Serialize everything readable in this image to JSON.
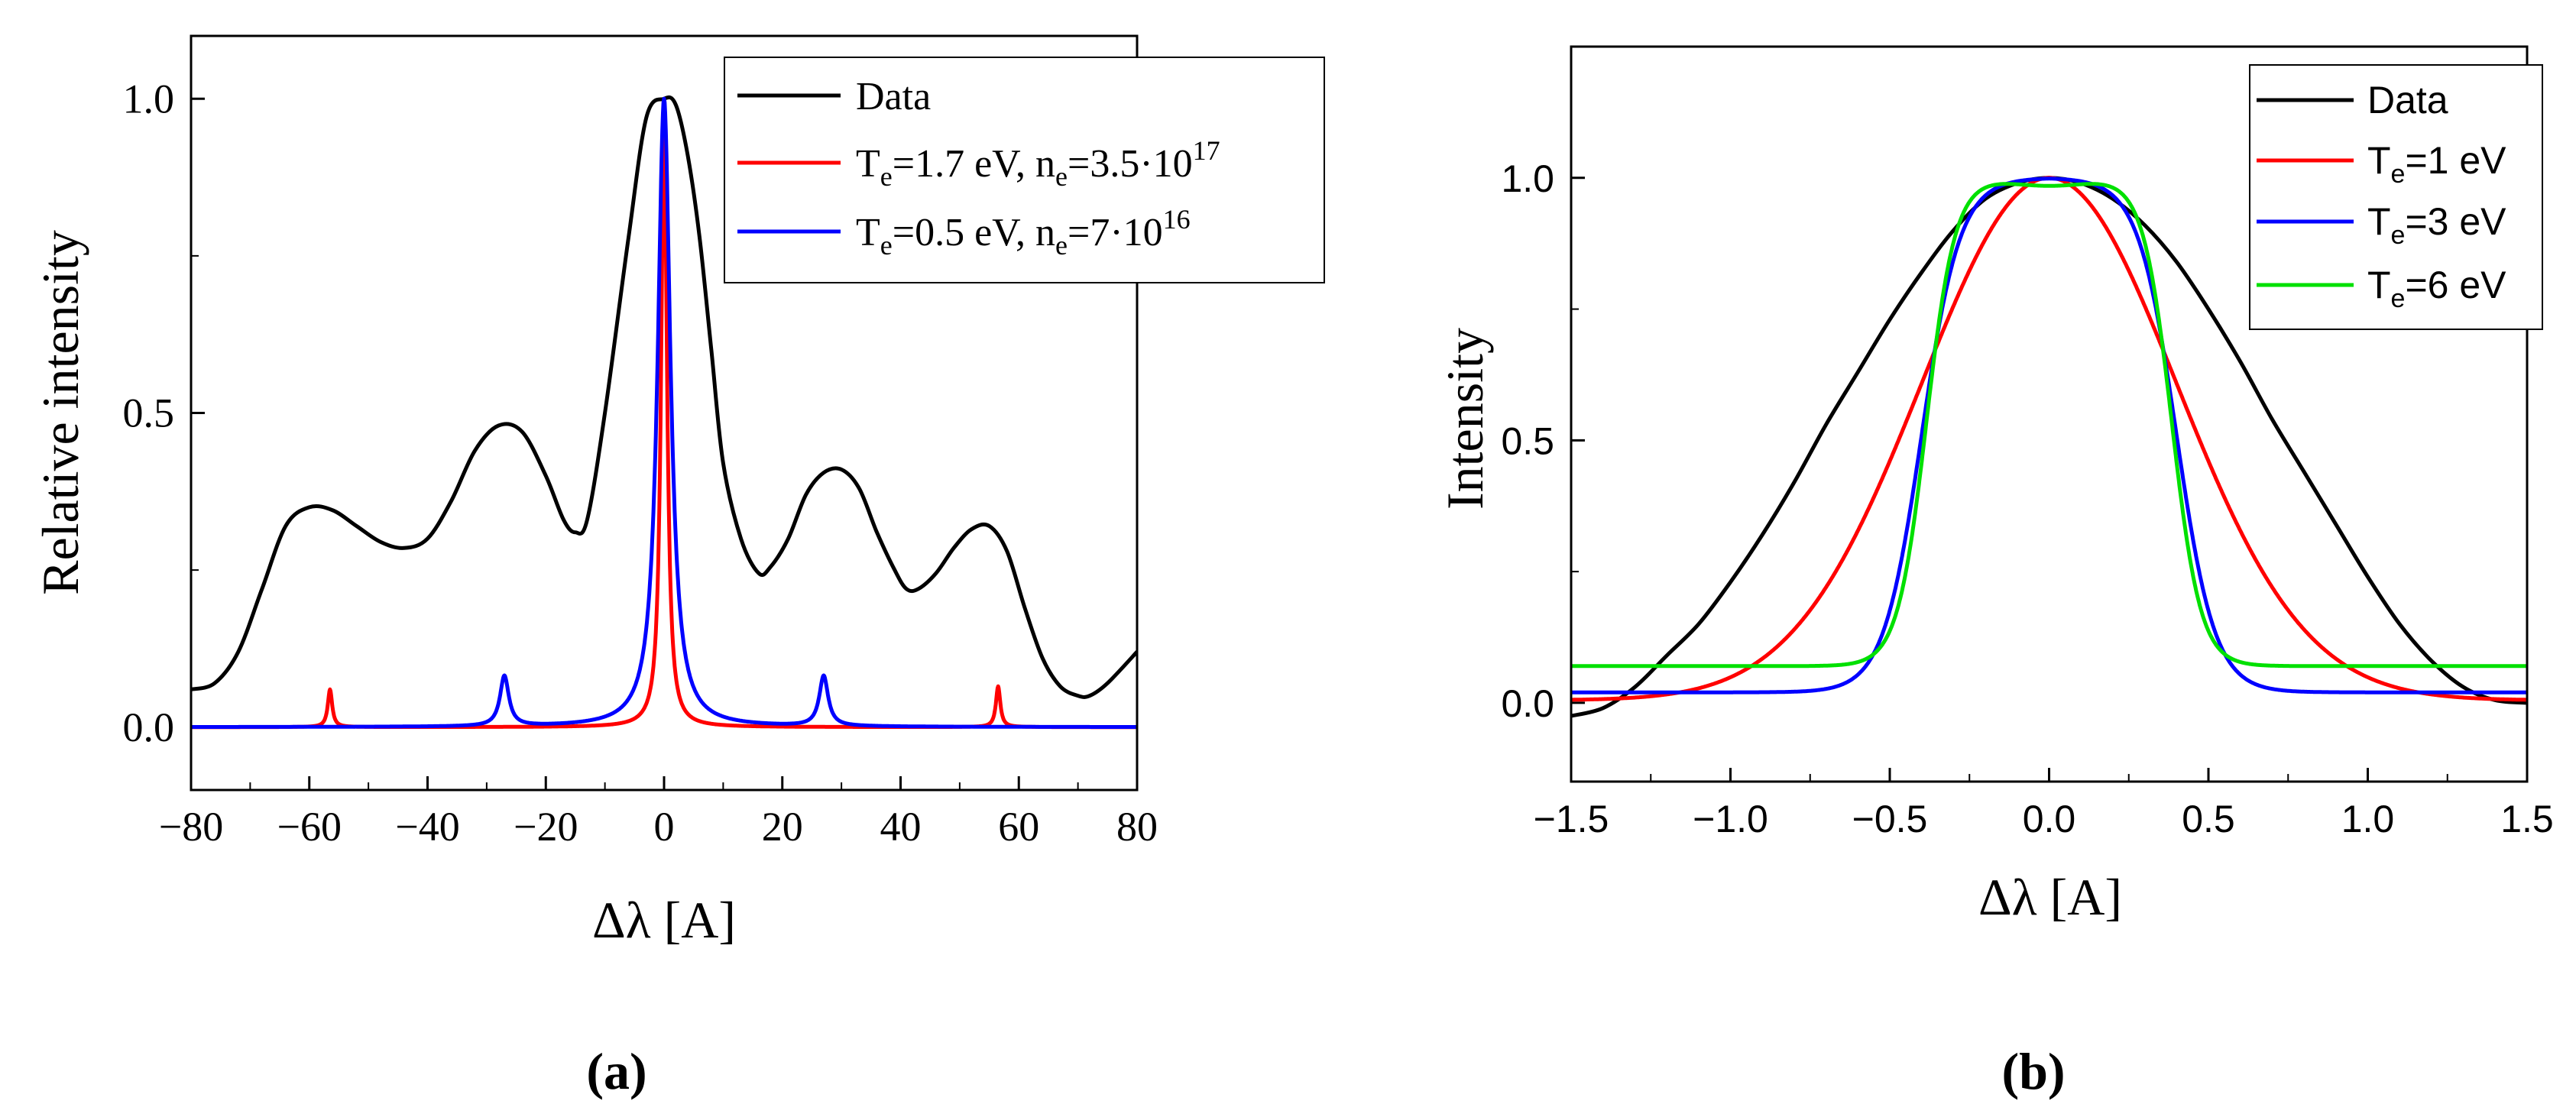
{
  "chart_data": [
    {
      "panel_label": "(a)",
      "type": "line",
      "xlabel": "Δλ [A]",
      "ylabel": "Relative intensity",
      "xlim": [
        -80,
        80
      ],
      "ylim": [
        -0.1,
        1.1
      ],
      "xticks": [
        -80,
        -60,
        -40,
        -20,
        0,
        20,
        40,
        60,
        80
      ],
      "yticks": [
        0.0,
        0.5,
        1.0
      ],
      "xtick_labels": [
        "−80",
        "−60",
        "−40",
        "−20",
        "0",
        "20",
        "40",
        "60",
        "80"
      ],
      "ytick_labels": [
        "0.0",
        "0.5",
        "1.0"
      ],
      "legend_position": "top-right",
      "series": [
        {
          "name": "Data",
          "legend": {
            "a": "Data"
          },
          "color": "#000000",
          "x": [
            -80,
            -76,
            -72,
            -68,
            -64,
            -60,
            -56,
            -52,
            -48,
            -44,
            -40,
            -36,
            -32,
            -28,
            -24,
            -20,
            -17,
            -15,
            -13,
            -10,
            -6,
            -3,
            0,
            2,
            4,
            6,
            8,
            10,
            13,
            16,
            18,
            21,
            24,
            27,
            30,
            33,
            36,
            39,
            41,
            43,
            46,
            49,
            52,
            55,
            58,
            61,
            64,
            67,
            70,
            72,
            75,
            80
          ],
          "y": [
            0.06,
            0.07,
            0.12,
            0.22,
            0.32,
            0.35,
            0.345,
            0.32,
            0.295,
            0.285,
            0.3,
            0.36,
            0.44,
            0.48,
            0.47,
            0.4,
            0.33,
            0.31,
            0.33,
            0.5,
            0.78,
            0.97,
            1.0,
            0.99,
            0.91,
            0.78,
            0.6,
            0.42,
            0.3,
            0.245,
            0.255,
            0.3,
            0.37,
            0.405,
            0.41,
            0.38,
            0.31,
            0.25,
            0.22,
            0.22,
            0.245,
            0.285,
            0.315,
            0.32,
            0.28,
            0.19,
            0.11,
            0.065,
            0.05,
            0.05,
            0.07,
            0.12
          ]
        },
        {
          "name": "Te=1.7 eV, ne=3.5·10^17",
          "legend": {
            "a": "T",
            "sub1": "e",
            "b": "=1.7 eV, n",
            "sub2": "e",
            "c": "=3.5·10",
            "sup": "17"
          },
          "color": "#ff0000",
          "baseline": 0.0,
          "peaks": [
            {
              "x": -56.5,
              "height": 0.06,
              "width": 0.45
            },
            {
              "x": 0,
              "height": 0.97,
              "width": 0.6
            },
            {
              "x": 56.5,
              "height": 0.065,
              "width": 0.45
            }
          ]
        },
        {
          "name": "Te=0.5 eV, ne=7·10^16",
          "legend": {
            "a": "T",
            "sub1": "e",
            "b": "=0.5 eV, n",
            "sub2": "e",
            "c": "=7·10",
            "sup": "16"
          },
          "color": "#0000ff",
          "baseline": 0.0,
          "peaks": [
            {
              "x": -27,
              "height": 0.08,
              "width": 0.9
            },
            {
              "x": 0,
              "height": 1.0,
              "width": 1.3
            },
            {
              "x": 27,
              "height": 0.08,
              "width": 0.9
            }
          ]
        }
      ]
    },
    {
      "panel_label": "(b)",
      "type": "line",
      "xlabel": "Δλ [A]",
      "ylabel": "Intensity",
      "xlim": [
        -1.5,
        1.5
      ],
      "ylim": [
        -0.15,
        1.25
      ],
      "xticks": [
        -1.5,
        -1.0,
        -0.5,
        0.0,
        0.5,
        1.0,
        1.5
      ],
      "yticks": [
        0.0,
        0.5,
        1.0
      ],
      "xtick_labels": [
        "−1.5",
        "−1.0",
        "−0.5",
        "0.0",
        "0.5",
        "1.0",
        "1.5"
      ],
      "ytick_labels": [
        "0.0",
        "0.5",
        "1.0"
      ],
      "legend_position": "top-right",
      "series": [
        {
          "name": "Data",
          "legend": {
            "a": "Data"
          },
          "color": "#000000",
          "x": [
            -1.5,
            -1.4,
            -1.3,
            -1.2,
            -1.1,
            -1.0,
            -0.9,
            -0.8,
            -0.7,
            -0.6,
            -0.5,
            -0.4,
            -0.3,
            -0.2,
            -0.1,
            0.0,
            0.1,
            0.2,
            0.3,
            0.4,
            0.5,
            0.6,
            0.7,
            0.8,
            0.9,
            1.0,
            1.1,
            1.2,
            1.3,
            1.4,
            1.5
          ],
          "y": [
            -0.025,
            -0.01,
            0.03,
            0.09,
            0.15,
            0.23,
            0.32,
            0.42,
            0.53,
            0.63,
            0.73,
            0.82,
            0.9,
            0.96,
            0.99,
            1.0,
            0.99,
            0.96,
            0.91,
            0.84,
            0.75,
            0.65,
            0.54,
            0.44,
            0.34,
            0.24,
            0.15,
            0.08,
            0.03,
            0.005,
            0.0
          ]
        },
        {
          "name": "Te=1 eV",
          "legend": {
            "a": "T",
            "sub1": "e",
            "b": "=1 eV"
          },
          "color": "#ff0000",
          "model": "gauss",
          "amplitude": 0.995,
          "sigma": 0.4,
          "baseline": 0.005
        },
        {
          "name": "Te=3 eV",
          "legend": {
            "a": "T",
            "sub1": "e",
            "b": "=3 eV"
          },
          "color": "#0000ff",
          "model": "flat",
          "amplitude": 0.98,
          "half_width": 0.4,
          "edge": 0.06,
          "baseline": 0.02
        },
        {
          "name": "Te=6 eV",
          "legend": {
            "a": "T",
            "sub1": "e",
            "b": "=6 eV"
          },
          "color": "#00e000",
          "model": "dip",
          "amplitude": 0.93,
          "half_width": 0.385,
          "edge": 0.045,
          "dip_depth": 0.015,
          "dip_sigma": 0.12,
          "baseline": 0.07
        }
      ]
    }
  ]
}
